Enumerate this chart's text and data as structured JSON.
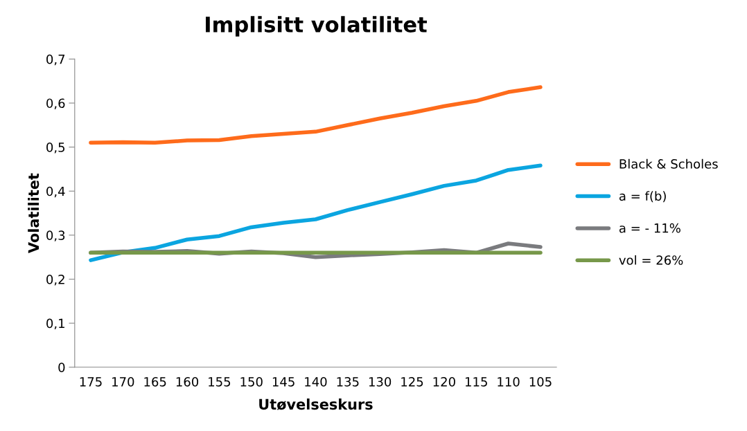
{
  "chart_data": {
    "type": "line",
    "title": "Implisitt volatilitet",
    "xlabel": "Utøvelseskurs",
    "ylabel": "Volatilitet",
    "categories": [
      "175",
      "170",
      "165",
      "160",
      "155",
      "150",
      "145",
      "140",
      "135",
      "130",
      "125",
      "120",
      "115",
      "110",
      "105"
    ],
    "series": [
      {
        "name": "Black & Scholes",
        "color": "#fe6b1b",
        "values": [
          0.51,
          0.511,
          0.51,
          0.515,
          0.516,
          0.525,
          0.53,
          0.535,
          0.55,
          0.565,
          0.578,
          0.593,
          0.605,
          0.625,
          0.636
        ]
      },
      {
        "name": "a = f(b)",
        "color": "#0ba5e0",
        "values": [
          0.243,
          0.261,
          0.271,
          0.29,
          0.298,
          0.318,
          0.328,
          0.336,
          0.357,
          0.375,
          0.393,
          0.412,
          0.424,
          0.448,
          0.458
        ]
      },
      {
        "name": "a = - 11%",
        "color": "#7a7b7e",
        "values": [
          0.26,
          0.263,
          0.262,
          0.264,
          0.258,
          0.263,
          0.259,
          0.25,
          0.254,
          0.257,
          0.261,
          0.266,
          0.26,
          0.281,
          0.273
        ]
      },
      {
        "name": "vol = 26%",
        "color": "#77984a",
        "values": [
          0.26,
          0.26,
          0.26,
          0.26,
          0.26,
          0.26,
          0.26,
          0.26,
          0.26,
          0.26,
          0.26,
          0.26,
          0.26,
          0.26,
          0.26
        ]
      }
    ],
    "ylim": [
      0,
      0.7
    ],
    "yticks": [
      0,
      {
        "value": 0.1,
        "label": "0,1"
      },
      {
        "value": 0.2,
        "label": "0,2"
      },
      {
        "value": 0.3,
        "label": "0,3"
      },
      {
        "value": 0.4,
        "label": "0,4"
      },
      {
        "value": 0.5,
        "label": "0,5"
      },
      {
        "value": 0.6,
        "label": "0,6"
      },
      {
        "value": 0.7,
        "label": "0,7"
      }
    ],
    "grid": false,
    "legend": "right",
    "marker": "none",
    "line_style": "solid"
  }
}
